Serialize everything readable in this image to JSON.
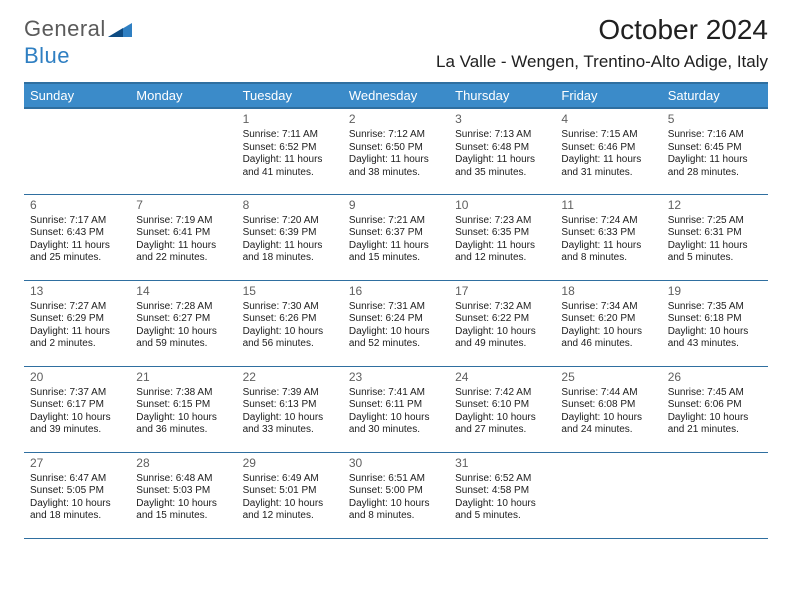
{
  "brand": {
    "part1": "General",
    "part2": "Blue"
  },
  "title": "October 2024",
  "subtitle": "La Valle - Wengen, Trentino-Alto Adige, Italy",
  "colors": {
    "header_bg": "#3b8bc9",
    "header_border": "#2f6fa0",
    "cell_border": "#2f6fa0",
    "text": "#202020",
    "daynum": "#606060",
    "brand_gray": "#5a5a5a",
    "brand_blue": "#2f7fc2",
    "background": "#ffffff"
  },
  "fontsize": {
    "title": 28,
    "subtitle": 17,
    "dayheader": 13,
    "daynum": 12,
    "body": 10,
    "logo": 22
  },
  "dayHeaders": [
    "Sunday",
    "Monday",
    "Tuesday",
    "Wednesday",
    "Thursday",
    "Friday",
    "Saturday"
  ],
  "weeks": [
    [
      null,
      null,
      {
        "n": "1",
        "sr": "7:11 AM",
        "ss": "6:52 PM",
        "dl": "11 hours and 41 minutes."
      },
      {
        "n": "2",
        "sr": "7:12 AM",
        "ss": "6:50 PM",
        "dl": "11 hours and 38 minutes."
      },
      {
        "n": "3",
        "sr": "7:13 AM",
        "ss": "6:48 PM",
        "dl": "11 hours and 35 minutes."
      },
      {
        "n": "4",
        "sr": "7:15 AM",
        "ss": "6:46 PM",
        "dl": "11 hours and 31 minutes."
      },
      {
        "n": "5",
        "sr": "7:16 AM",
        "ss": "6:45 PM",
        "dl": "11 hours and 28 minutes."
      }
    ],
    [
      {
        "n": "6",
        "sr": "7:17 AM",
        "ss": "6:43 PM",
        "dl": "11 hours and 25 minutes."
      },
      {
        "n": "7",
        "sr": "7:19 AM",
        "ss": "6:41 PM",
        "dl": "11 hours and 22 minutes."
      },
      {
        "n": "8",
        "sr": "7:20 AM",
        "ss": "6:39 PM",
        "dl": "11 hours and 18 minutes."
      },
      {
        "n": "9",
        "sr": "7:21 AM",
        "ss": "6:37 PM",
        "dl": "11 hours and 15 minutes."
      },
      {
        "n": "10",
        "sr": "7:23 AM",
        "ss": "6:35 PM",
        "dl": "11 hours and 12 minutes."
      },
      {
        "n": "11",
        "sr": "7:24 AM",
        "ss": "6:33 PM",
        "dl": "11 hours and 8 minutes."
      },
      {
        "n": "12",
        "sr": "7:25 AM",
        "ss": "6:31 PM",
        "dl": "11 hours and 5 minutes."
      }
    ],
    [
      {
        "n": "13",
        "sr": "7:27 AM",
        "ss": "6:29 PM",
        "dl": "11 hours and 2 minutes."
      },
      {
        "n": "14",
        "sr": "7:28 AM",
        "ss": "6:27 PM",
        "dl": "10 hours and 59 minutes."
      },
      {
        "n": "15",
        "sr": "7:30 AM",
        "ss": "6:26 PM",
        "dl": "10 hours and 56 minutes."
      },
      {
        "n": "16",
        "sr": "7:31 AM",
        "ss": "6:24 PM",
        "dl": "10 hours and 52 minutes."
      },
      {
        "n": "17",
        "sr": "7:32 AM",
        "ss": "6:22 PM",
        "dl": "10 hours and 49 minutes."
      },
      {
        "n": "18",
        "sr": "7:34 AM",
        "ss": "6:20 PM",
        "dl": "10 hours and 46 minutes."
      },
      {
        "n": "19",
        "sr": "7:35 AM",
        "ss": "6:18 PM",
        "dl": "10 hours and 43 minutes."
      }
    ],
    [
      {
        "n": "20",
        "sr": "7:37 AM",
        "ss": "6:17 PM",
        "dl": "10 hours and 39 minutes."
      },
      {
        "n": "21",
        "sr": "7:38 AM",
        "ss": "6:15 PM",
        "dl": "10 hours and 36 minutes."
      },
      {
        "n": "22",
        "sr": "7:39 AM",
        "ss": "6:13 PM",
        "dl": "10 hours and 33 minutes."
      },
      {
        "n": "23",
        "sr": "7:41 AM",
        "ss": "6:11 PM",
        "dl": "10 hours and 30 minutes."
      },
      {
        "n": "24",
        "sr": "7:42 AM",
        "ss": "6:10 PM",
        "dl": "10 hours and 27 minutes."
      },
      {
        "n": "25",
        "sr": "7:44 AM",
        "ss": "6:08 PM",
        "dl": "10 hours and 24 minutes."
      },
      {
        "n": "26",
        "sr": "7:45 AM",
        "ss": "6:06 PM",
        "dl": "10 hours and 21 minutes."
      }
    ],
    [
      {
        "n": "27",
        "sr": "6:47 AM",
        "ss": "5:05 PM",
        "dl": "10 hours and 18 minutes."
      },
      {
        "n": "28",
        "sr": "6:48 AM",
        "ss": "5:03 PM",
        "dl": "10 hours and 15 minutes."
      },
      {
        "n": "29",
        "sr": "6:49 AM",
        "ss": "5:01 PM",
        "dl": "10 hours and 12 minutes."
      },
      {
        "n": "30",
        "sr": "6:51 AM",
        "ss": "5:00 PM",
        "dl": "10 hours and 8 minutes."
      },
      {
        "n": "31",
        "sr": "6:52 AM",
        "ss": "4:58 PM",
        "dl": "10 hours and 5 minutes."
      },
      null,
      null
    ]
  ],
  "labels": {
    "sunrise": "Sunrise: ",
    "sunset": "Sunset: ",
    "daylight": "Daylight: "
  }
}
